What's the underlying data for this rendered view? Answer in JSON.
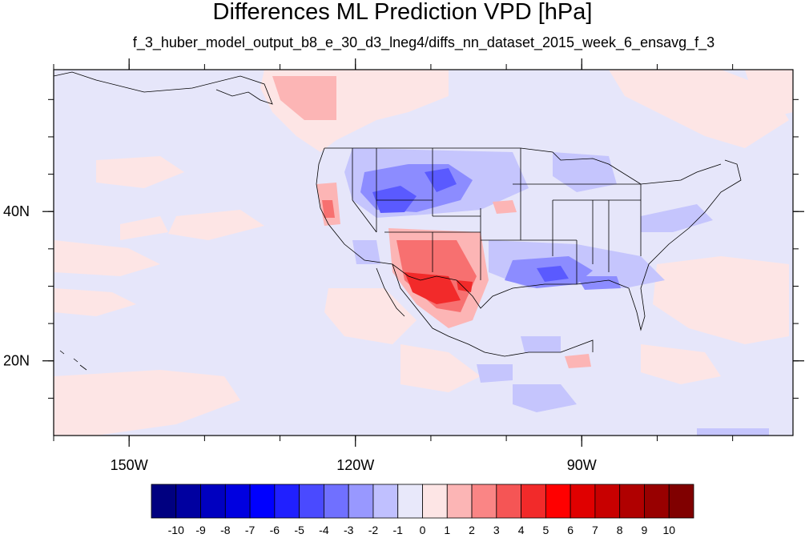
{
  "title": "Differences ML Prediction VPD [hPa]",
  "subtitle": "f_3_huber_model_output_b8_e_30_d3_lneg4/diffs_nn_dataset_2015_week_6_ensavg_f_3",
  "map": {
    "lon_range": [
      -160,
      -62
    ],
    "lat_range": [
      10,
      59
    ],
    "lon_ticks": [
      {
        "lon": -150,
        "label": "150W"
      },
      {
        "lon": -120,
        "label": "120W"
      },
      {
        "lon": -90,
        "label": "90W"
      }
    ],
    "lat_ticks": [
      {
        "lat": 40,
        "label": "40N"
      },
      {
        "lat": 20,
        "label": "20N"
      }
    ],
    "background_color": "#e6e6fa"
  },
  "colorbar": {
    "labels": [
      "-10",
      "-9",
      "-8",
      "-7",
      "-6",
      "-5",
      "-4",
      "-3",
      "-2",
      "-1",
      "0",
      "1",
      "2",
      "3",
      "4",
      "5",
      "6",
      "7",
      "8",
      "9",
      "10"
    ],
    "colors": [
      "#000080",
      "#0000a0",
      "#0000c0",
      "#0000e0",
      "#0000ff",
      "#2020ff",
      "#4a4aff",
      "#7070ff",
      "#9898ff",
      "#c0c0ff",
      "#e8e8fa",
      "#fde5e5",
      "#fcb5b5",
      "#fa8585",
      "#f55555",
      "#f22a2a",
      "#ff0000",
      "#e00000",
      "#c80000",
      "#b00000",
      "#980000",
      "#800000"
    ]
  }
}
